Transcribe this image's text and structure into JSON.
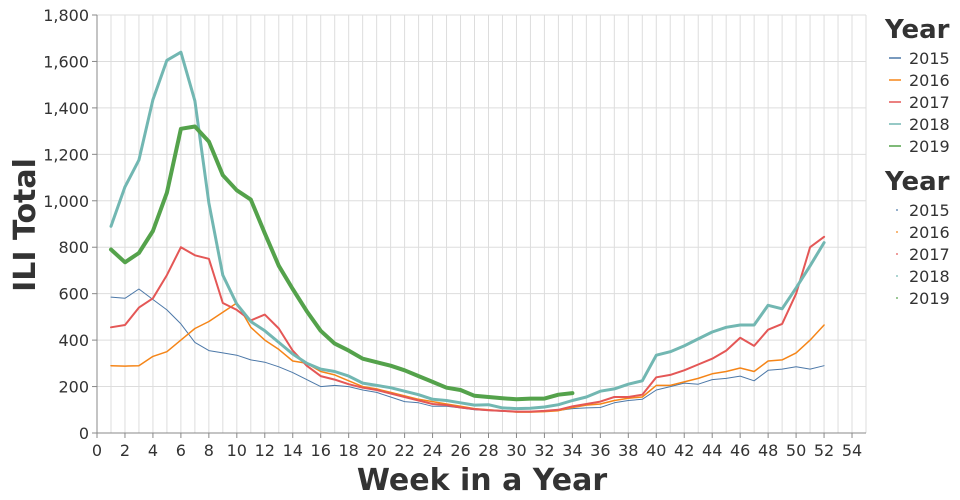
{
  "chart_data": {
    "type": "line",
    "xlabel": "Week in a Year",
    "ylabel": "ILI Total",
    "xlim": [
      0,
      55
    ],
    "ylim": [
      0,
      1800
    ],
    "x_ticks": [
      0,
      2,
      4,
      6,
      8,
      10,
      12,
      14,
      16,
      18,
      20,
      22,
      24,
      26,
      28,
      30,
      32,
      34,
      36,
      38,
      40,
      42,
      44,
      46,
      48,
      50,
      52,
      54
    ],
    "y_ticks": [
      0,
      200,
      400,
      600,
      800,
      1000,
      1200,
      1400,
      1600,
      1800
    ],
    "y_tick_labels": [
      "0",
      "200",
      "400",
      "600",
      "800",
      "1,000",
      "1,200",
      "1,400",
      "1,600",
      "1,800"
    ],
    "grid": true,
    "legend_placement": "right",
    "legends": [
      {
        "title": "Year",
        "symbol": "line",
        "entries": [
          "2015",
          "2016",
          "2017",
          "2018",
          "2019"
        ]
      },
      {
        "title": "Year",
        "symbol": "dot",
        "entries": [
          "2015",
          "2016",
          "2017",
          "2018",
          "2019"
        ]
      }
    ],
    "series": [
      {
        "name": "2015",
        "color": "#4c78a8",
        "width": 1,
        "x": [
          1,
          2,
          3,
          4,
          5,
          6,
          7,
          8,
          9,
          10,
          11,
          12,
          13,
          14,
          15,
          16,
          17,
          18,
          19,
          20,
          21,
          22,
          23,
          24,
          25,
          26,
          27,
          28,
          29,
          30,
          31,
          32,
          33,
          34,
          35,
          36,
          37,
          38,
          39,
          40,
          41,
          42,
          43,
          44,
          45,
          46,
          47,
          48,
          49,
          50,
          51,
          52
        ],
        "y": [
          585,
          580,
          620,
          575,
          530,
          470,
          390,
          355,
          345,
          335,
          315,
          305,
          285,
          260,
          230,
          200,
          205,
          200,
          185,
          175,
          155,
          135,
          130,
          115,
          115,
          108,
          100,
          97,
          93,
          92,
          92,
          92,
          97,
          105,
          108,
          110,
          130,
          140,
          145,
          185,
          200,
          215,
          210,
          230,
          235,
          245,
          225,
          270,
          275,
          285,
          275,
          290
        ]
      },
      {
        "name": "2016",
        "color": "#f58518",
        "width": 1.5,
        "x": [
          1,
          2,
          3,
          4,
          5,
          6,
          7,
          8,
          9,
          10,
          11,
          12,
          13,
          14,
          15,
          16,
          17,
          18,
          19,
          20,
          21,
          22,
          23,
          24,
          25,
          26,
          27,
          28,
          29,
          30,
          31,
          32,
          33,
          34,
          35,
          36,
          37,
          38,
          39,
          40,
          41,
          42,
          43,
          44,
          45,
          46,
          47,
          48,
          49,
          50,
          51,
          52
        ],
        "y": [
          290,
          288,
          290,
          330,
          350,
          400,
          450,
          480,
          520,
          560,
          455,
          400,
          360,
          310,
          300,
          265,
          250,
          225,
          200,
          190,
          175,
          160,
          145,
          135,
          125,
          115,
          105,
          100,
          95,
          90,
          90,
          92,
          96,
          110,
          120,
          125,
          140,
          150,
          155,
          205,
          205,
          220,
          235,
          255,
          265,
          280,
          265,
          310,
          315,
          345,
          400,
          465
        ]
      },
      {
        "name": "2017",
        "color": "#e45756",
        "width": 2,
        "x": [
          1,
          2,
          3,
          4,
          5,
          6,
          7,
          8,
          9,
          10,
          11,
          12,
          13,
          14,
          15,
          16,
          17,
          18,
          19,
          20,
          21,
          22,
          23,
          24,
          25,
          26,
          27,
          28,
          29,
          30,
          31,
          32,
          33,
          34,
          35,
          36,
          37,
          38,
          39,
          40,
          41,
          42,
          43,
          44,
          45,
          46,
          47,
          48,
          49,
          50,
          51,
          52
        ],
        "y": [
          455,
          465,
          540,
          580,
          680,
          800,
          765,
          750,
          560,
          530,
          485,
          510,
          450,
          355,
          290,
          245,
          230,
          210,
          195,
          185,
          170,
          155,
          140,
          125,
          120,
          110,
          103,
          98,
          95,
          92,
          92,
          95,
          100,
          115,
          125,
          135,
          155,
          155,
          165,
          240,
          250,
          270,
          295,
          320,
          355,
          410,
          375,
          445,
          470,
          600,
          800,
          845
        ]
      },
      {
        "name": "2018",
        "color": "#72b7b2",
        "width": 3,
        "x": [
          1,
          2,
          3,
          4,
          5,
          6,
          7,
          8,
          9,
          10,
          11,
          12,
          13,
          14,
          15,
          16,
          17,
          18,
          19,
          20,
          21,
          22,
          23,
          24,
          25,
          26,
          27,
          28,
          29,
          30,
          31,
          32,
          33,
          34,
          35,
          36,
          37,
          38,
          39,
          40,
          41,
          42,
          43,
          44,
          45,
          46,
          47,
          48,
          49,
          50,
          51,
          52
        ],
        "y": [
          890,
          1060,
          1175,
          1435,
          1605,
          1640,
          1430,
          990,
          680,
          555,
          480,
          440,
          390,
          340,
          300,
          275,
          265,
          245,
          215,
          205,
          195,
          180,
          165,
          145,
          140,
          130,
          120,
          122,
          108,
          105,
          107,
          112,
          122,
          140,
          155,
          180,
          190,
          210,
          225,
          335,
          350,
          375,
          405,
          435,
          455,
          465,
          465,
          550,
          535,
          625,
          720,
          820
        ]
      },
      {
        "name": "2019",
        "color": "#54a24b",
        "width": 4,
        "x": [
          1,
          2,
          3,
          4,
          5,
          6,
          7,
          8,
          9,
          10,
          11,
          12,
          13,
          14,
          15,
          16,
          17,
          18,
          19,
          20,
          21,
          22,
          23,
          24,
          25,
          26,
          27,
          28,
          29,
          30,
          31,
          32,
          33,
          34
        ],
        "y": [
          790,
          735,
          775,
          870,
          1035,
          1310,
          1320,
          1255,
          1110,
          1045,
          1005,
          860,
          720,
          620,
          525,
          440,
          385,
          355,
          320,
          305,
          290,
          270,
          245,
          220,
          195,
          185,
          160,
          155,
          150,
          145,
          148,
          148,
          165,
          172
        ]
      }
    ]
  }
}
